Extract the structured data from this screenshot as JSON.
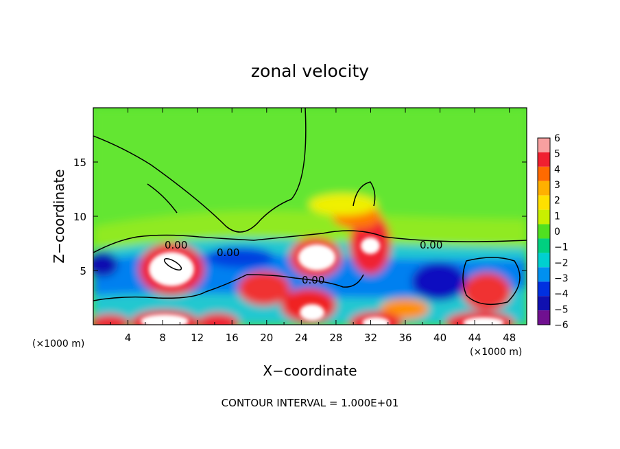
{
  "chart_data": {
    "type": "heatmap",
    "title": "zonal velocity",
    "xlabel": "X−coordinate",
    "ylabel": "Z−coordinate",
    "x_unit": "(×1000 m)",
    "x_unit_right": "(×1000 m)",
    "footer": "CONTOUR INTERVAL = 1.000E+01",
    "xlim": [
      0,
      50
    ],
    "ylim": [
      0,
      20
    ],
    "x_ticks": [
      "4",
      "8",
      "12",
      "16",
      "20",
      "24",
      "28",
      "32",
      "36",
      "40",
      "44",
      "48"
    ],
    "y_ticks": [
      "5",
      "10",
      "15"
    ],
    "contour_labels": [
      "0.00",
      "0.00",
      "0.00",
      "0.00"
    ],
    "colorbar": {
      "ticks": [
        "6",
        "5",
        "4",
        "3",
        "2",
        "1",
        "0",
        "−1",
        "−2",
        "−3",
        "−4",
        "−5",
        "−6"
      ],
      "colors": [
        "#f8a0a0",
        "#f02030",
        "#ff6a00",
        "#ffb000",
        "#ffe000",
        "#c8f000",
        "#50e020",
        "#00d080",
        "#00d0d0",
        "#0090f0",
        "#0030e0",
        "#1010b0",
        "#701090"
      ]
    },
    "features": [
      {
        "kind": "negative",
        "x": 2,
        "z": 5.5,
        "value": -4
      },
      {
        "kind": "positive",
        "x": 9,
        "z": 5,
        "value": 6
      },
      {
        "kind": "negative",
        "x": 14,
        "z": 5.5,
        "value": -3
      },
      {
        "kind": "positive",
        "x": 20,
        "z": 3,
        "value": 4
      },
      {
        "kind": "negative",
        "x": 21,
        "z": 6.5,
        "value": -3
      },
      {
        "kind": "positive",
        "x": 26,
        "z": 6,
        "value": 6
      },
      {
        "kind": "positive",
        "x": 26,
        "z": 2.5,
        "value": 5
      },
      {
        "kind": "positive",
        "x": 31,
        "z": 9.5,
        "value": 4
      },
      {
        "kind": "positive",
        "x": 32,
        "z": 7,
        "value": 6
      },
      {
        "kind": "negative",
        "x": 40,
        "z": 4.5,
        "value": -5
      },
      {
        "kind": "positive",
        "x": 45,
        "z": 3,
        "value": 5
      },
      {
        "kind": "positive",
        "x": 9,
        "z": 0.5,
        "value": 6
      },
      {
        "kind": "positive",
        "x": 33,
        "z": 0.5,
        "value": 6
      },
      {
        "kind": "positive",
        "x": 44,
        "z": 0.5,
        "value": 5
      }
    ]
  }
}
